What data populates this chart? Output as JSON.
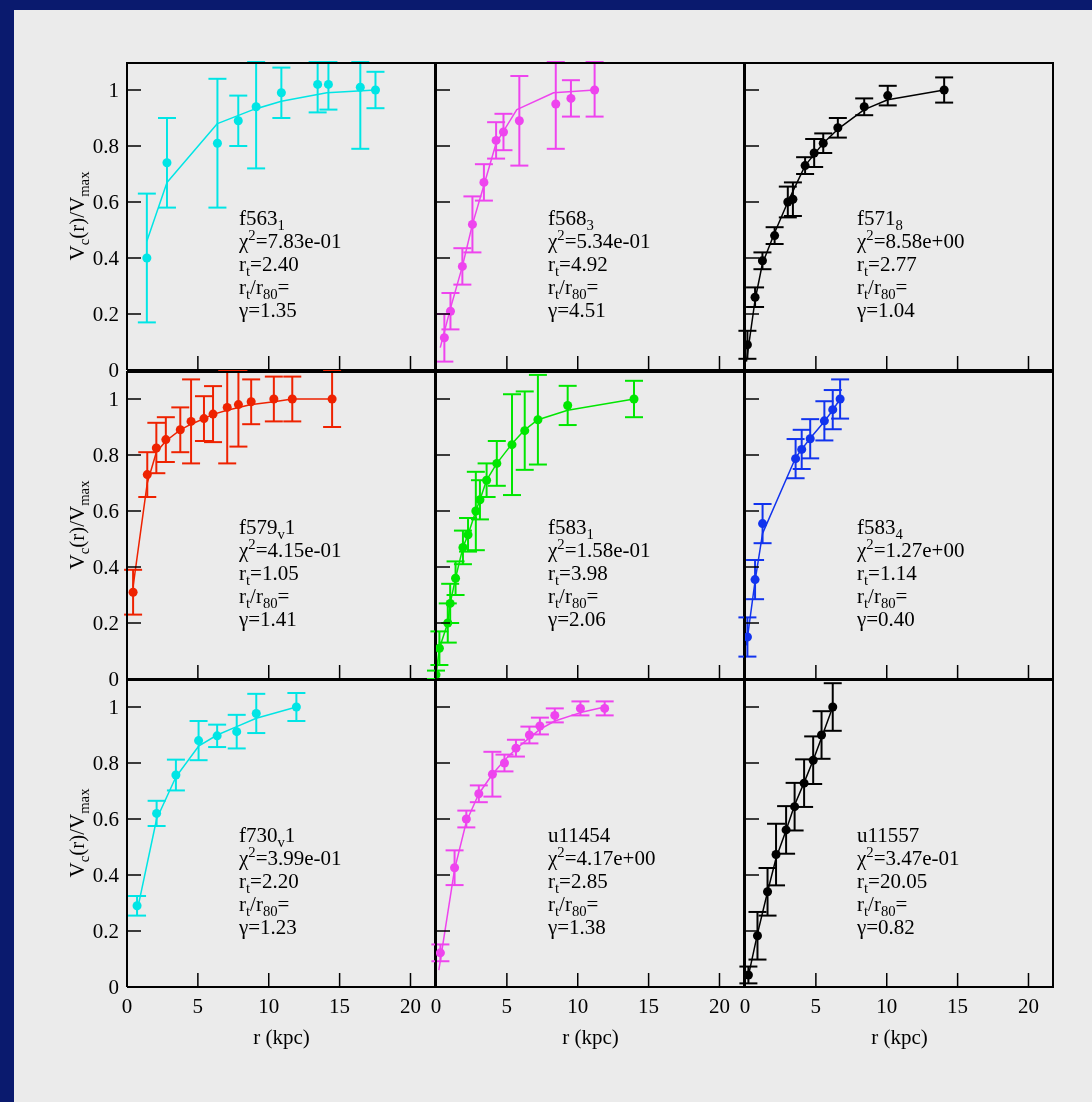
{
  "chart_data": [
    {
      "type": "scatter",
      "marker": "circle",
      "tick_labels": "y",
      "ylabel": "V$_{c}$(r)/V$_{max}$",
      "xlim": [
        0,
        21.8
      ],
      "xticks": [
        0,
        5,
        10,
        15,
        20
      ],
      "ylim": [
        0,
        1.1
      ],
      "yticks": [
        0,
        0.2,
        0.4,
        0.6,
        0.8,
        1
      ],
      "annotations": [
        "f563$_{1}$",
        "χ$^{2}$=7.83e-01",
        "r$_{t}$=2.40",
        "r$_{t}$/r$_{80}$=",
        "γ=1.35"
      ],
      "series": [
        {
          "color": "#00e5e5",
          "x": [
            1.4,
            2.82,
            6.38,
            7.85,
            9.11,
            10.89,
            13.45,
            14.21,
            16.46,
            17.53
          ],
          "values": [
            0.4,
            0.74,
            0.81,
            0.89,
            0.94,
            0.99,
            1.02,
            1.02,
            1.01,
            1.0
          ],
          "errors": [
            0.23,
            0.16,
            0.23,
            0.09,
            [
              0.72,
              1.1
            ],
            0.09,
            [
              0.92,
              1.1
            ],
            [
              0.93,
              1.1
            ],
            [
              0.79,
              1.1
            ],
            0.065
          ]
        },
        {
          "type": "line",
          "marker": "none",
          "color": "#00e5e5",
          "x": [
            1.4,
            2.82,
            6.38,
            8.9,
            10.89,
            14.1,
            17.53
          ],
          "values": [
            0.46,
            0.67,
            0.88,
            0.93,
            0.96,
            0.99,
            1.0
          ]
        }
      ]
    },
    {
      "type": "scatter",
      "marker": "circle",
      "tick_labels": false,
      "xlim": [
        0,
        21.8
      ],
      "xticks": [
        0,
        5,
        10,
        15,
        20
      ],
      "ylim": [
        0,
        1.1
      ],
      "yticks": [
        0,
        0.2,
        0.4,
        0.6,
        0.8,
        1
      ],
      "annotations": [
        "f568$_{3}$",
        "χ$^{2}$=5.34e-01",
        "r$_{t}$=4.92",
        "r$_{t}$/r$_{80}$=",
        "γ=4.51"
      ],
      "series": [
        {
          "color": "#ee44ee",
          "x": [
            0.59,
            1.02,
            1.86,
            2.57,
            3.38,
            4.24,
            4.76,
            5.88,
            8.45,
            9.52,
            11.19
          ],
          "values": [
            0.115,
            0.21,
            0.37,
            0.52,
            0.67,
            0.82,
            0.85,
            0.89,
            0.95,
            0.97,
            1.0
          ],
          "errors": [
            0.085,
            0.065,
            0.065,
            0.1,
            0.065,
            0.065,
            0.065,
            0.16,
            [
              0.79,
              1.1
            ],
            0.065,
            [
              0.905,
              1.1
            ]
          ]
        },
        {
          "type": "line",
          "marker": "none",
          "color": "#ee44ee",
          "x": [
            0.3,
            1.02,
            1.86,
            2.57,
            3.38,
            4.24,
            5.7,
            8.3,
            11.19
          ],
          "values": [
            0.08,
            0.22,
            0.37,
            0.52,
            0.66,
            0.81,
            0.93,
            0.99,
            1.0
          ]
        }
      ]
    },
    {
      "type": "scatter",
      "marker": "circle",
      "tick_labels": false,
      "xlim": [
        0,
        21.8
      ],
      "xticks": [
        0,
        5,
        10,
        15,
        20
      ],
      "ylim": [
        0,
        1.1
      ],
      "yticks": [
        0,
        0.2,
        0.4,
        0.6,
        0.8,
        1
      ],
      "annotations": [
        "f571$_{8}$",
        "χ$^{2}$=8.58e+00",
        "r$_{t}$=2.77",
        "r$_{t}$/r$_{80}$=",
        "γ=1.04"
      ],
      "series": [
        {
          "color": "#000000",
          "x": [
            0.17,
            0.71,
            1.23,
            2.09,
            3.02,
            3.38,
            4.24,
            4.88,
            5.52,
            6.55,
            8.41,
            10.07,
            14.05
          ],
          "values": [
            0.09,
            0.26,
            0.39,
            0.48,
            0.6,
            0.61,
            0.73,
            0.775,
            0.81,
            0.865,
            0.94,
            0.98,
            1.0
          ],
          "errors": [
            0.05,
            0.035,
            0.03,
            0.03,
            0.055,
            0.06,
            0.03,
            0.05,
            0.035,
            0.035,
            0.03,
            0.035,
            0.045
          ]
        },
        {
          "type": "line",
          "marker": "none",
          "color": "#000000",
          "x": [
            0.1,
            0.71,
            1.23,
            2.09,
            3.02,
            4.24,
            4.88,
            5.52,
            6.55,
            8.41,
            10.07,
            14.05
          ],
          "values": [
            0.03,
            0.25,
            0.38,
            0.49,
            0.6,
            0.73,
            0.77,
            0.81,
            0.86,
            0.93,
            0.965,
            1.0
          ]
        }
      ]
    },
    {
      "type": "scatter",
      "marker": "circle",
      "tick_labels": "y",
      "ylabel": "V$_{c}$(r)/V$_{max}$",
      "xlim": [
        0,
        21.8
      ],
      "xticks": [
        0,
        5,
        10,
        15,
        20
      ],
      "ylim": [
        0,
        1.1
      ],
      "yticks": [
        0,
        0.2,
        0.4,
        0.6,
        0.8,
        1
      ],
      "annotations": [
        "f579$_{v}$1",
        "χ$^{2}$=4.15e-01",
        "r$_{t}$=1.05",
        "r$_{t}$/r$_{80}$=",
        "γ=1.41"
      ],
      "series": [
        {
          "color": "#ee2200",
          "x": [
            0.43,
            1.43,
            2.07,
            2.74,
            3.76,
            4.52,
            5.43,
            6.07,
            7.07,
            7.86,
            8.76,
            10.36,
            11.66,
            14.47
          ],
          "values": [
            0.31,
            0.73,
            0.825,
            0.855,
            0.89,
            0.92,
            0.93,
            0.946,
            0.97,
            0.98,
            0.99,
            1.0,
            1.0,
            1.0
          ],
          "errors": [
            0.08,
            0.08,
            0.09,
            0.08,
            0.08,
            0.15,
            0.08,
            0.1,
            [
              0.77,
              1.1
            ],
            [
              0.83,
              1.1
            ],
            0.08,
            0.08,
            0.08,
            0.1
          ]
        },
        {
          "type": "line",
          "marker": "none",
          "color": "#ee2200",
          "x": [
            0.43,
            1.43,
            2.07,
            2.74,
            3.76,
            4.52,
            5.43,
            6.07,
            7.07,
            8.76,
            10.36,
            11.66,
            14.47
          ],
          "values": [
            0.33,
            0.7,
            0.81,
            0.85,
            0.89,
            0.91,
            0.93,
            0.945,
            0.96,
            0.98,
            0.99,
            1.0,
            1.0
          ]
        }
      ]
    },
    {
      "type": "scatter",
      "marker": "circle",
      "tick_labels": false,
      "xlim": [
        0,
        21.8
      ],
      "xticks": [
        0,
        5,
        10,
        15,
        20
      ],
      "ylim": [
        0,
        1.1
      ],
      "yticks": [
        0,
        0.2,
        0.4,
        0.6,
        0.8,
        1
      ],
      "annotations": [
        "f583$_{1}$",
        "χ$^{2}$=1.58e-01",
        "r$_{t}$=3.98",
        "r$_{t}$/r$_{80}$=",
        "γ=2.06"
      ],
      "series": [
        {
          "color": "#00e600",
          "x": [
            0,
            0.24,
            0.83,
            1.0,
            1.38,
            1.9,
            2.26,
            2.81,
            3.1,
            3.57,
            4.29,
            5.36,
            6.26,
            7.19,
            9.29,
            13.97
          ],
          "values": [
            0.015,
            0.11,
            0.2,
            0.27,
            0.36,
            0.47,
            0.515,
            0.6,
            0.64,
            0.71,
            0.77,
            0.837,
            0.887,
            0.926,
            0.977,
            1.0
          ],
          "errors": [
            0.015,
            0.06,
            0.07,
            0.07,
            0.06,
            0.06,
            0.06,
            0.14,
            0.07,
            0.06,
            0.08,
            0.18,
            0.14,
            0.16,
            0.07,
            0.065
          ]
        },
        {
          "type": "line",
          "marker": "none",
          "color": "#00e600",
          "x": [
            0,
            0.24,
            0.83,
            1.0,
            1.38,
            1.9,
            2.26,
            2.81,
            3.1,
            3.57,
            4.29,
            5.36,
            6.26,
            7.19,
            9.29,
            13.97
          ],
          "values": [
            0.015,
            0.11,
            0.2,
            0.27,
            0.36,
            0.47,
            0.515,
            0.6,
            0.64,
            0.71,
            0.77,
            0.84,
            0.89,
            0.926,
            0.96,
            1.0
          ]
        }
      ]
    },
    {
      "type": "scatter",
      "marker": "circle",
      "tick_labels": false,
      "xlim": [
        0,
        21.8
      ],
      "xticks": [
        0,
        5,
        10,
        15,
        20
      ],
      "ylim": [
        0,
        1.1
      ],
      "yticks": [
        0,
        0.2,
        0.4,
        0.6,
        0.8,
        1
      ],
      "annotations": [
        "f583$_{4}$",
        "χ$^{2}$=1.27e+00",
        "r$_{t}$=1.14",
        "r$_{t}$/r$_{80}$=",
        "γ=0.40"
      ],
      "series": [
        {
          "color": "#1133ee",
          "x": [
            0.17,
            0.71,
            1.24,
            3.57,
            4.0,
            4.6,
            5.6,
            6.19,
            6.71
          ],
          "values": [
            0.15,
            0.355,
            0.555,
            0.787,
            0.82,
            0.858,
            0.922,
            0.962,
            1.0
          ],
          "errors": [
            0.07,
            0.07,
            0.07,
            0.07,
            0.07,
            0.07,
            0.07,
            0.07,
            0.07
          ]
        },
        {
          "type": "line",
          "marker": "none",
          "color": "#1133ee",
          "x": [
            0.1,
            0.71,
            1.24,
            3.57,
            4.0,
            4.6,
            5.6,
            6.19,
            6.71
          ],
          "values": [
            0.12,
            0.35,
            0.52,
            0.79,
            0.82,
            0.86,
            0.92,
            0.96,
            1.0
          ]
        }
      ]
    },
    {
      "type": "scatter",
      "marker": "circle",
      "ylabel": "V$_{c}$(r)/V$_{max}$",
      "xlabel": "r (kpc)",
      "xlim": [
        0,
        21.8
      ],
      "xticks": [
        0,
        5,
        10,
        15,
        20
      ],
      "ylim": [
        0,
        1.1
      ],
      "yticks": [
        0,
        0.2,
        0.4,
        0.6,
        0.8,
        1
      ],
      "annotations": [
        "f730$_{v}$1",
        "χ$^{2}$=3.99e-01",
        "r$_{t}$=2.20",
        "r$_{t}$/r$_{80}$=",
        "γ=1.23"
      ],
      "series": [
        {
          "color": "#00e5e5",
          "x": [
            0.71,
            2.09,
            3.45,
            5.05,
            6.36,
            7.74,
            9.12,
            11.95
          ],
          "values": [
            0.29,
            0.62,
            0.757,
            0.88,
            0.897,
            0.912,
            0.977,
            1.0
          ],
          "errors": [
            0.035,
            0.045,
            0.055,
            0.07,
            0.04,
            0.06,
            0.07,
            0.05
          ]
        },
        {
          "type": "line",
          "marker": "none",
          "color": "#00e5e5",
          "x": [
            0.71,
            2.09,
            3.45,
            5.05,
            6.36,
            7.74,
            9.12,
            11.95
          ],
          "values": [
            0.27,
            0.6,
            0.75,
            0.86,
            0.9,
            0.93,
            0.96,
            1.0
          ]
        }
      ]
    },
    {
      "type": "scatter",
      "marker": "circle",
      "tick_labels": "x",
      "xlabel": "r (kpc)",
      "xlim": [
        0,
        21.8
      ],
      "xticks": [
        0,
        5,
        10,
        15,
        20
      ],
      "ylim": [
        0,
        1.1
      ],
      "yticks": [
        0,
        0.2,
        0.4,
        0.6,
        0.8,
        1
      ],
      "annotations": [
        "u11454",
        "χ$^{2}$=4.17e+00",
        "r$_{t}$=2.85",
        "r$_{t}$/r$_{80}$=",
        "γ=1.38"
      ],
      "series": [
        {
          "color": "#ee44ee",
          "x": [
            0.31,
            1.31,
            2.14,
            3.02,
            3.98,
            4.83,
            5.64,
            6.59,
            7.33,
            8.38,
            10.19,
            11.9
          ],
          "values": [
            0.122,
            0.426,
            0.6,
            0.69,
            0.76,
            0.8,
            0.853,
            0.9,
            0.932,
            0.97,
            0.995,
            0.995
          ],
          "errors": [
            0.03,
            0.062,
            0.03,
            0.03,
            0.08,
            0.03,
            0.03,
            0.03,
            0.03,
            0.025,
            0.025,
            0.025
          ]
        },
        {
          "type": "line",
          "marker": "none",
          "color": "#ee44ee",
          "x": [
            0.2,
            1.31,
            2.14,
            3.02,
            3.98,
            4.83,
            5.64,
            6.59,
            7.33,
            8.38,
            10.19,
            11.9
          ],
          "values": [
            0.06,
            0.42,
            0.59,
            0.69,
            0.76,
            0.81,
            0.85,
            0.89,
            0.92,
            0.95,
            0.98,
            1.0
          ]
        }
      ]
    },
    {
      "type": "scatter",
      "marker": "circle",
      "tick_labels": "x",
      "xlabel": "r (kpc)",
      "xlim": [
        0,
        21.8
      ],
      "xticks": [
        0,
        5,
        10,
        15,
        20
      ],
      "ylim": [
        0,
        1.1
      ],
      "yticks": [
        0,
        0.2,
        0.4,
        0.6,
        0.8,
        1
      ],
      "annotations": [
        "u11557",
        "χ$^{2}$=3.47e-01",
        "r$_{t}$=20.05",
        "r$_{t}$/r$_{80}$=",
        "γ=0.82"
      ],
      "series": [
        {
          "color": "#000000",
          "x": [
            0.24,
            0.88,
            1.59,
            2.19,
            2.9,
            3.5,
            4.17,
            4.81,
            5.4,
            6.19
          ],
          "values": [
            0.043,
            0.183,
            0.34,
            0.473,
            0.561,
            0.644,
            0.728,
            0.81,
            0.9,
            1.0
          ],
          "errors": [
            0.03,
            0.085,
            0.085,
            0.11,
            0.085,
            0.085,
            0.085,
            0.085,
            0.085,
            0.085
          ]
        },
        {
          "type": "line",
          "marker": "none",
          "color": "#000000",
          "x": [
            0.24,
            0.88,
            1.59,
            2.19,
            2.9,
            3.5,
            4.17,
            4.81,
            5.4,
            6.19
          ],
          "values": [
            0.04,
            0.19,
            0.34,
            0.46,
            0.56,
            0.65,
            0.73,
            0.81,
            0.89,
            1.0
          ]
        }
      ]
    }
  ]
}
